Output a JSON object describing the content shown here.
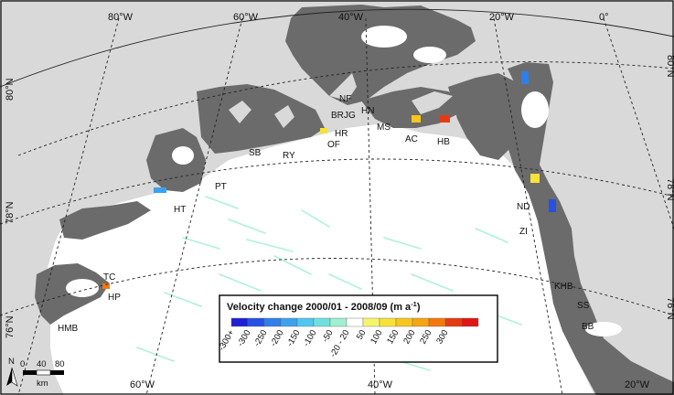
{
  "legend": {
    "title": "Velocity change 2000/01 - 2008/09 (m a",
    "title_sup": "-1",
    "title_end": ")",
    "classes": [
      {
        "label": "-300+",
        "color": "#1f1fd6"
      },
      {
        "label": "-300",
        "color": "#2450e6"
      },
      {
        "label": "-250",
        "color": "#2e7fe8"
      },
      {
        "label": "-200",
        "color": "#3aa3ee"
      },
      {
        "label": "-150",
        "color": "#4fc7f0"
      },
      {
        "label": "-100",
        "color": "#6fe0e0"
      },
      {
        "label": "-50",
        "color": "#9ff0d0"
      },
      {
        "label": "-20 - 20",
        "color": "#ffffff"
      },
      {
        "label": "50",
        "color": "#f5f56a"
      },
      {
        "label": "100",
        "color": "#f7e23a"
      },
      {
        "label": "150",
        "color": "#f7c61e"
      },
      {
        "label": "200",
        "color": "#f7a412"
      },
      {
        "label": "250",
        "color": "#f5780e"
      },
      {
        "label": "300",
        "color": "#e63a12"
      },
      {
        "label": "",
        "color": "#e01616"
      }
    ]
  },
  "graticule_labels": {
    "top": [
      "80°W",
      "60°W",
      "40°W",
      "20°W",
      "0°"
    ],
    "bottom": [
      "60°W",
      "40°W",
      "20°W"
    ],
    "left": [
      "80°N",
      "78°N",
      "76°N"
    ],
    "right": [
      "80°N",
      "78°N",
      "76°N"
    ]
  },
  "glacier_labels": [
    "NF",
    "BR",
    "JG",
    "HN",
    "HR",
    "OF",
    "MS",
    "AC",
    "HB",
    "SB",
    "RY",
    "PT",
    "HT",
    "TC",
    "HP",
    "HMB",
    "ND",
    "ZI",
    "KHB",
    "SS",
    "BB"
  ],
  "scale_bar": {
    "ticks": [
      "0",
      "40",
      "80"
    ],
    "unit": "km"
  },
  "north_arrow": "N",
  "colors": {
    "land": "#6b6b6b",
    "ocean": "#d9d9d9",
    "ice": "#ffffff",
    "grid": "#222222"
  }
}
